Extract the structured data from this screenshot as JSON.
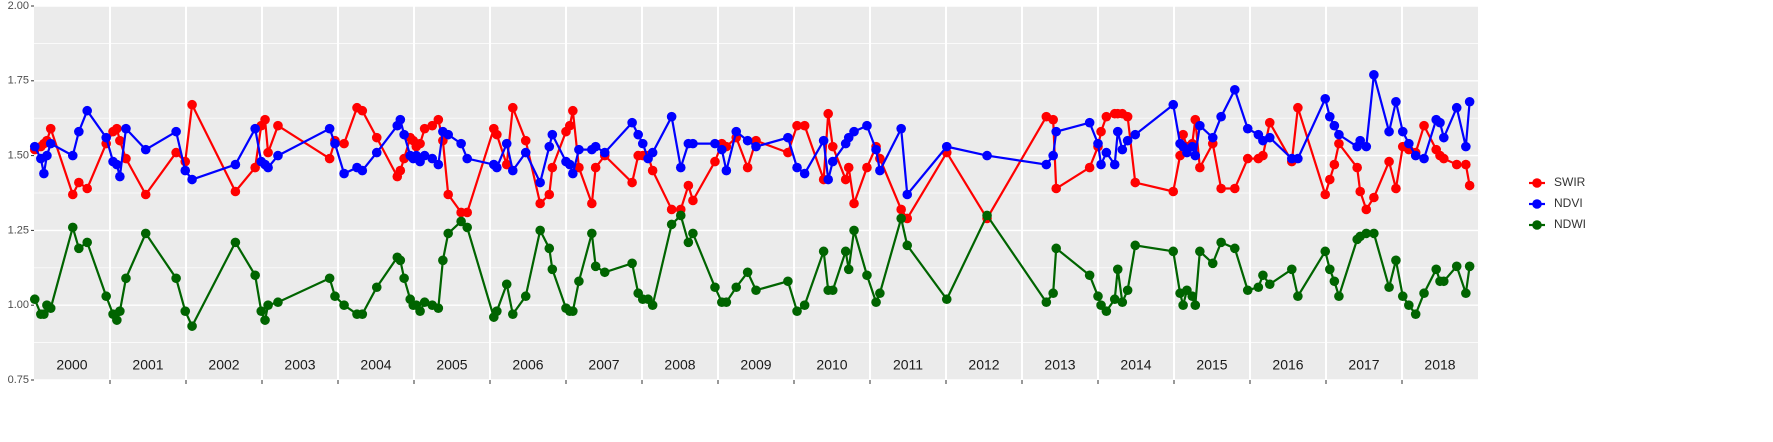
{
  "chart_data": {
    "type": "line",
    "x": [
      2000.01,
      2000.09,
      2000.13,
      2000.17,
      2000.22,
      2000.51,
      2000.59,
      2000.7,
      2000.95,
      2001.04,
      2001.09,
      2001.13,
      2001.21,
      2001.47,
      2001.87,
      2001.99,
      2002.08,
      2002.65,
      2002.91,
      2002.99,
      2003.04,
      2003.08,
      2003.21,
      2003.89,
      2003.96,
      2004.08,
      2004.25,
      2004.32,
      2004.51,
      2004.78,
      2004.82,
      2004.87,
      2004.95,
      2004.99,
      2005.03,
      2005.08,
      2005.14,
      2005.24,
      2005.32,
      2005.38,
      2005.45,
      2005.62,
      2005.7,
      2006.05,
      2006.09,
      2006.22,
      2006.3,
      2006.47,
      2006.66,
      2006.78,
      2006.82,
      2007.0,
      2007.05,
      2007.09,
      2007.17,
      2007.34,
      2007.39,
      2007.51,
      2007.87,
      2007.95,
      2008.01,
      2008.08,
      2008.14,
      2008.39,
      2008.51,
      2008.61,
      2008.67,
      2008.96,
      2009.05,
      2009.11,
      2009.24,
      2009.39,
      2009.5,
      2009.92,
      2010.04,
      2010.14,
      2010.39,
      2010.45,
      2010.51,
      2010.68,
      2010.72,
      2010.79,
      2010.96,
      2011.08,
      2011.13,
      2011.41,
      2011.49,
      2012.01,
      2012.54,
      2013.32,
      2013.41,
      2013.45,
      2013.89,
      2014.0,
      2014.04,
      2014.11,
      2014.22,
      2014.26,
      2014.32,
      2014.39,
      2014.49,
      2014.99,
      2015.08,
      2015.12,
      2015.17,
      2015.24,
      2015.28,
      2015.34,
      2015.51,
      2015.62,
      2015.8,
      2015.97,
      2016.11,
      2016.17,
      2016.26,
      2016.55,
      2016.63,
      2016.99,
      2017.05,
      2017.11,
      2017.17,
      2017.41,
      2017.45,
      2017.53,
      2017.63,
      2017.83,
      2017.92,
      2018.01,
      2018.09,
      2018.18,
      2018.29,
      2018.45,
      2018.5,
      2018.55,
      2018.72,
      2018.84,
      2018.89
    ],
    "series": [
      {
        "name": "SWIR",
        "color": "#ff0000",
        "values": [
          1.52,
          1.53,
          1.54,
          1.55,
          1.59,
          1.37,
          1.41,
          1.39,
          1.54,
          1.58,
          1.59,
          1.55,
          1.49,
          1.37,
          1.51,
          1.48,
          1.67,
          1.38,
          1.46,
          1.6,
          1.62,
          1.51,
          1.6,
          1.49,
          1.55,
          1.54,
          1.66,
          1.65,
          1.56,
          1.43,
          1.45,
          1.49,
          1.56,
          1.55,
          1.53,
          1.54,
          1.59,
          1.6,
          1.62,
          1.55,
          1.37,
          1.31,
          1.31,
          1.59,
          1.57,
          1.47,
          1.66,
          1.55,
          1.34,
          1.37,
          1.46,
          1.58,
          1.6,
          1.65,
          1.46,
          1.34,
          1.46,
          1.5,
          1.41,
          1.5,
          1.5,
          1.5,
          1.45,
          1.32,
          1.32,
          1.4,
          1.35,
          1.48,
          1.54,
          1.53,
          1.56,
          1.46,
          1.55,
          1.51,
          1.6,
          1.6,
          1.42,
          1.64,
          1.53,
          1.42,
          1.46,
          1.34,
          1.46,
          1.53,
          1.49,
          1.32,
          1.29,
          1.51,
          1.29,
          1.63,
          1.62,
          1.39,
          1.46,
          1.53,
          1.58,
          1.63,
          1.64,
          1.64,
          1.64,
          1.63,
          1.41,
          1.38,
          1.5,
          1.57,
          1.53,
          1.54,
          1.62,
          1.46,
          1.54,
          1.39,
          1.39,
          1.49,
          1.49,
          1.5,
          1.61,
          1.48,
          1.66,
          1.37,
          1.42,
          1.47,
          1.54,
          1.46,
          1.38,
          1.32,
          1.36,
          1.48,
          1.39,
          1.53,
          1.52,
          1.51,
          1.6,
          1.52,
          1.5,
          1.49,
          1.47,
          1.47,
          1.4
        ]
      },
      {
        "name": "NDVI",
        "color": "#0000ff",
        "values": [
          1.53,
          1.49,
          1.44,
          1.5,
          1.54,
          1.5,
          1.58,
          1.65,
          1.56,
          1.48,
          1.47,
          1.43,
          1.59,
          1.52,
          1.58,
          1.45,
          1.42,
          1.47,
          1.59,
          1.48,
          1.47,
          1.46,
          1.5,
          1.59,
          1.54,
          1.44,
          1.46,
          1.45,
          1.51,
          1.6,
          1.62,
          1.57,
          1.5,
          1.49,
          1.5,
          1.48,
          1.5,
          1.49,
          1.47,
          1.58,
          1.57,
          1.54,
          1.49,
          1.47,
          1.46,
          1.54,
          1.45,
          1.51,
          1.41,
          1.53,
          1.57,
          1.48,
          1.47,
          1.44,
          1.52,
          1.52,
          1.53,
          1.51,
          1.61,
          1.57,
          1.54,
          1.49,
          1.51,
          1.63,
          1.46,
          1.54,
          1.54,
          1.54,
          1.52,
          1.45,
          1.58,
          1.55,
          1.53,
          1.56,
          1.46,
          1.44,
          1.55,
          1.42,
          1.48,
          1.54,
          1.56,
          1.58,
          1.6,
          1.52,
          1.45,
          1.59,
          1.37,
          1.53,
          1.5,
          1.47,
          1.5,
          1.58,
          1.61,
          1.54,
          1.47,
          1.51,
          1.47,
          1.58,
          1.52,
          1.55,
          1.57,
          1.67,
          1.54,
          1.53,
          1.51,
          1.53,
          1.5,
          1.6,
          1.56,
          1.63,
          1.72,
          1.59,
          1.57,
          1.55,
          1.56,
          1.49,
          1.49,
          1.69,
          1.63,
          1.6,
          1.57,
          1.53,
          1.55,
          1.53,
          1.77,
          1.58,
          1.68,
          1.58,
          1.54,
          1.5,
          1.49,
          1.62,
          1.61,
          1.56,
          1.66,
          1.53,
          1.68
        ]
      },
      {
        "name": "NDWI",
        "color": "#006400",
        "values": [
          1.02,
          0.97,
          0.97,
          1.0,
          0.99,
          1.26,
          1.19,
          1.21,
          1.03,
          0.97,
          0.95,
          0.98,
          1.09,
          1.24,
          1.09,
          0.98,
          0.93,
          1.21,
          1.1,
          0.98,
          0.95,
          1.0,
          1.01,
          1.09,
          1.03,
          1.0,
          0.97,
          0.97,
          1.06,
          1.16,
          1.15,
          1.09,
          1.02,
          1.0,
          1.0,
          0.98,
          1.01,
          1.0,
          0.99,
          1.15,
          1.24,
          1.28,
          1.26,
          0.96,
          0.98,
          1.07,
          0.97,
          1.03,
          1.25,
          1.19,
          1.12,
          0.99,
          0.98,
          0.98,
          1.08,
          1.24,
          1.13,
          1.11,
          1.14,
          1.04,
          1.02,
          1.02,
          1.0,
          1.27,
          1.3,
          1.21,
          1.24,
          1.06,
          1.01,
          1.01,
          1.06,
          1.11,
          1.05,
          1.08,
          0.98,
          1.0,
          1.18,
          1.05,
          1.05,
          1.18,
          1.12,
          1.25,
          1.1,
          1.01,
          1.04,
          1.29,
          1.2,
          1.02,
          1.3,
          1.01,
          1.04,
          1.19,
          1.1,
          1.03,
          1.0,
          0.98,
          1.02,
          1.12,
          1.01,
          1.05,
          1.2,
          1.18,
          1.04,
          1.0,
          1.05,
          1.03,
          1.0,
          1.18,
          1.14,
          1.21,
          1.19,
          1.05,
          1.06,
          1.1,
          1.07,
          1.12,
          1.03,
          1.18,
          1.12,
          1.08,
          1.03,
          1.22,
          1.23,
          1.24,
          1.24,
          1.06,
          1.15,
          1.03,
          1.0,
          0.97,
          1.04,
          1.12,
          1.08,
          1.08,
          1.13,
          1.04,
          1.13
        ]
      }
    ],
    "xlim": [
      2000,
      2019
    ],
    "xticks": [
      {
        "value": 2000.5,
        "label": "2000"
      },
      {
        "value": 2001.5,
        "label": "2001"
      },
      {
        "value": 2002.5,
        "label": "2002"
      },
      {
        "value": 2003.5,
        "label": "2003"
      },
      {
        "value": 2004.5,
        "label": "2004"
      },
      {
        "value": 2005.5,
        "label": "2005"
      },
      {
        "value": 2006.5,
        "label": "2006"
      },
      {
        "value": 2007.5,
        "label": "2007"
      },
      {
        "value": 2008.5,
        "label": "2008"
      },
      {
        "value": 2009.5,
        "label": "2009"
      },
      {
        "value": 2010.5,
        "label": "2010"
      },
      {
        "value": 2011.5,
        "label": "2011"
      },
      {
        "value": 2012.5,
        "label": "2012"
      },
      {
        "value": 2013.5,
        "label": "2013"
      },
      {
        "value": 2014.5,
        "label": "2014"
      },
      {
        "value": 2015.5,
        "label": "2015"
      },
      {
        "value": 2016.5,
        "label": "2016"
      },
      {
        "value": 2017.5,
        "label": "2017"
      },
      {
        "value": 2018.5,
        "label": "2018"
      }
    ],
    "ylim": [
      0.75,
      2.0
    ],
    "yticks": [
      {
        "value": 0.75,
        "label": "0.75"
      },
      {
        "value": 1.0,
        "label": "1.00"
      },
      {
        "value": 1.25,
        "label": "1.25"
      },
      {
        "value": 1.5,
        "label": "1.50"
      },
      {
        "value": 1.75,
        "label": "1.75"
      },
      {
        "value": 2.0,
        "label": "2.00"
      }
    ],
    "grid": true,
    "legend": "right"
  }
}
